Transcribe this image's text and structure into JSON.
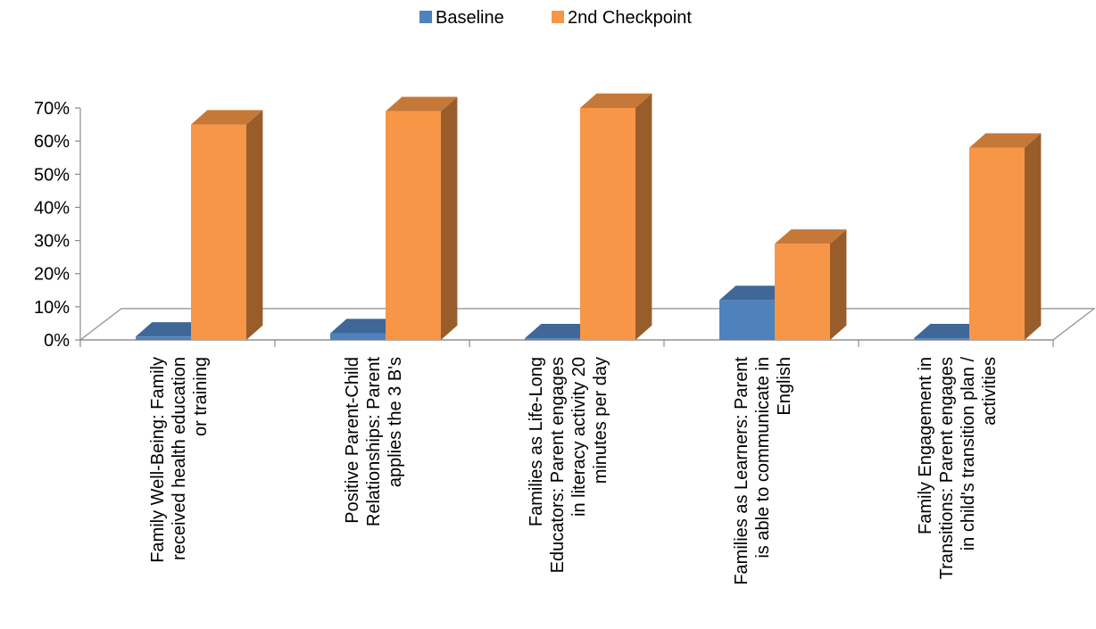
{
  "chart_data": {
    "type": "bar",
    "subtype": "3d-clustered-column",
    "categories": [
      [
        "Family Well-Being: Family",
        "received health education",
        "or training"
      ],
      [
        "Positive Parent-Child",
        "Relationships: Parent",
        "applies the 3 B's"
      ],
      [
        "Families as Life-Long",
        "Educators: Parent engages",
        "in literacy activity 20",
        "minutes per day"
      ],
      [
        "Families as Learners: Parent",
        "is able to communicate in",
        "English"
      ],
      [
        "Family Engagement in",
        "Transitions: Parent engages",
        "in child's transition plan /",
        "activities"
      ]
    ],
    "series": [
      {
        "name": "Baseline",
        "values": [
          1,
          2,
          0.5,
          12,
          0.5
        ],
        "color": "#4F81BD"
      },
      {
        "name": "2nd Checkpoint",
        "values": [
          65,
          69,
          70,
          29,
          58
        ],
        "color": "#F79646"
      }
    ],
    "yticks": [
      "0%",
      "10%",
      "20%",
      "30%",
      "40%",
      "50%",
      "60%",
      "70%"
    ],
    "ylim": [
      0,
      70
    ],
    "unit": "%",
    "legend_position": "top-center",
    "grid": false
  }
}
